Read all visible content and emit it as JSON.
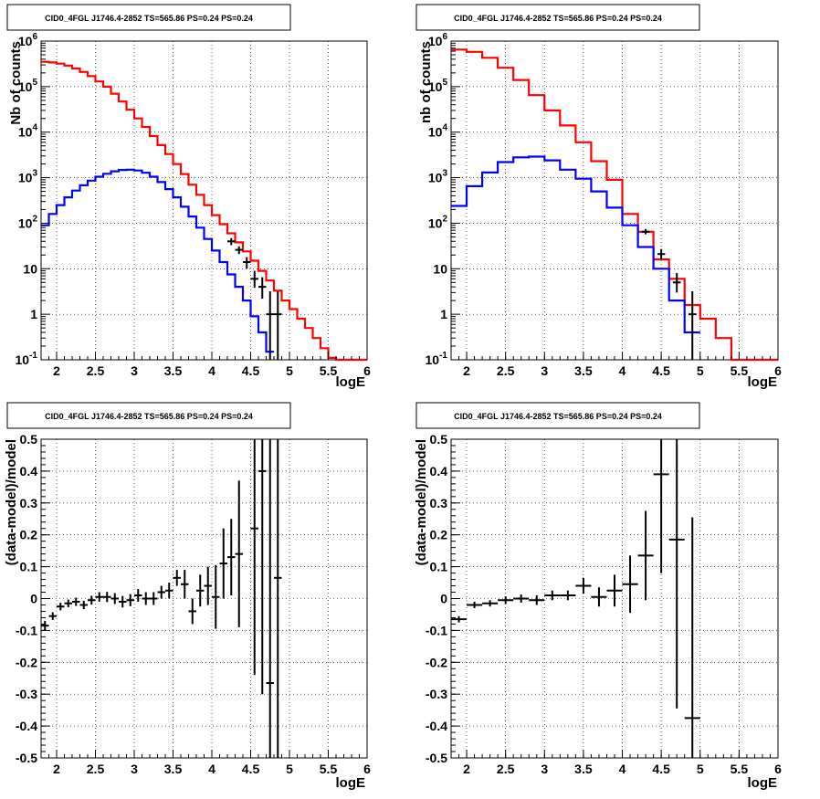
{
  "figure_title": "CID0_4FGL J1746.4-2852 TS=565.86 PS=0.24 PS=0.24",
  "colors": {
    "model_total": "#ff0000",
    "model_component": "#0000ff",
    "data": "#000000",
    "grid": "#000000",
    "background": "#ffffff"
  },
  "chart_data": [
    {
      "type": "line",
      "title": "CID0_4FGL J1746.4-2852 TS=565.86 PS=0.24 PS=0.24",
      "xlabel": "logE",
      "ylabel": "Nb of counts",
      "x_ticks": [
        "2",
        "2.5",
        "3",
        "3.5",
        "4",
        "4.5",
        "5",
        "5.5",
        "6"
      ],
      "y_ticks": [
        "10^-1",
        "1",
        "10",
        "10^2",
        "10^3",
        "10^4",
        "10^5",
        "10^6"
      ],
      "xlim": [
        1.8,
        6.0
      ],
      "ylim": [
        0.1,
        1000000
      ],
      "yscale": "log",
      "grid": true,
      "series": [
        {
          "kind": "step",
          "color": "red",
          "bin_edges": [
            1.8,
            1.9,
            2.0,
            2.1,
            2.2,
            2.3,
            2.4,
            2.5,
            2.6,
            2.7,
            2.8,
            2.9,
            3.0,
            3.1,
            3.2,
            3.3,
            3.4,
            3.5,
            3.6,
            3.7,
            3.8,
            3.9,
            4.0,
            4.1,
            4.2,
            4.3,
            4.4,
            4.5,
            4.6,
            4.7,
            4.8,
            4.9,
            5.0,
            5.1,
            5.2,
            5.3,
            5.4,
            5.5,
            5.6,
            5.7,
            5.8,
            5.9,
            6.0
          ],
          "values": [
            350000,
            340000,
            320000,
            290000,
            250000,
            210000,
            170000,
            130000,
            100000,
            70000,
            47000,
            31000,
            20000,
            13000,
            8200,
            5200,
            3300,
            2000,
            1200,
            700,
            420,
            250,
            150,
            95,
            60,
            38,
            24,
            15,
            9,
            5.5,
            3.3,
            2.0,
            1.3,
            0.8,
            0.5,
            0.3,
            0.18,
            0.11,
            0.1,
            0.1,
            0.1,
            0.1
          ]
        },
        {
          "kind": "step",
          "color": "blue",
          "bin_edges": [
            1.8,
            1.9,
            2.0,
            2.1,
            2.2,
            2.3,
            2.4,
            2.5,
            2.6,
            2.7,
            2.8,
            2.9,
            3.0,
            3.1,
            3.2,
            3.3,
            3.4,
            3.5,
            3.6,
            3.7,
            3.8,
            3.9,
            4.0,
            4.1,
            4.2,
            4.3,
            4.4,
            4.5,
            4.6,
            4.7,
            4.8
          ],
          "values": [
            90,
            160,
            250,
            370,
            520,
            680,
            860,
            1050,
            1220,
            1380,
            1480,
            1500,
            1440,
            1280,
            1050,
            800,
            560,
            370,
            230,
            140,
            80,
            45,
            25,
            14,
            7.5,
            4,
            2,
            0.9,
            0.4,
            0.15
          ]
        },
        {
          "kind": "errorbars",
          "color": "black",
          "points": [
            {
              "x": 4.25,
              "y": 40,
              "lo": 33,
              "hi": 47
            },
            {
              "x": 4.35,
              "y": 26,
              "lo": 21,
              "hi": 31
            },
            {
              "x": 4.45,
              "y": 14,
              "lo": 10,
              "hi": 18
            },
            {
              "x": 4.55,
              "y": 6,
              "lo": 3.8,
              "hi": 9
            },
            {
              "x": 4.65,
              "y": 4,
              "lo": 2.2,
              "hi": 6.5
            },
            {
              "x": 4.75,
              "y": 1,
              "lo": 0.1,
              "hi": 3.2
            },
            {
              "x": 4.85,
              "y": 1,
              "lo": 0.1,
              "hi": 3.2
            }
          ]
        }
      ]
    },
    {
      "type": "line",
      "title": "CID0_4FGL J1746.4-2852 TS=565.86 PS=0.24 PS=0.24",
      "xlabel": "logE",
      "ylabel": "nb of counts",
      "x_ticks": [
        "2",
        "2.5",
        "3",
        "3.5",
        "4",
        "4.5",
        "5",
        "5.5",
        "6"
      ],
      "y_ticks": [
        "10^-1",
        "1",
        "10",
        "10^2",
        "10^3",
        "10^4",
        "10^5",
        "10^6"
      ],
      "xlim": [
        1.8,
        6.0
      ],
      "ylim": [
        0.1,
        1000000
      ],
      "yscale": "log",
      "grid": true,
      "series": [
        {
          "kind": "step",
          "color": "red",
          "bin_edges": [
            1.8,
            2.0,
            2.2,
            2.4,
            2.6,
            2.8,
            3.0,
            3.2,
            3.4,
            3.6,
            3.8,
            4.0,
            4.2,
            4.4,
            4.6,
            4.8,
            5.0,
            5.2,
            5.4,
            5.6,
            5.8,
            6.0
          ],
          "values": [
            650000,
            580000,
            430000,
            260000,
            140000,
            65000,
            30000,
            14000,
            6000,
            2300,
            900,
            160,
            65,
            16,
            6,
            1.6,
            0.8,
            0.3,
            0.1,
            0.1,
            0.1
          ]
        },
        {
          "kind": "step",
          "color": "blue",
          "bin_edges": [
            1.8,
            2.0,
            2.2,
            2.4,
            2.6,
            2.8,
            3.0,
            3.2,
            3.4,
            3.6,
            3.8,
            4.0,
            4.2,
            4.4,
            4.6,
            4.8,
            5.0
          ],
          "values": [
            240,
            650,
            1300,
            2200,
            2800,
            2900,
            2400,
            1500,
            950,
            500,
            220,
            90,
            30,
            10,
            2,
            0.4
          ]
        },
        {
          "kind": "errorbars",
          "color": "black",
          "points": [
            {
              "x": 4.3,
              "y": 65,
              "lo": 57,
              "hi": 74
            },
            {
              "x": 4.5,
              "y": 21,
              "lo": 16,
              "hi": 27
            },
            {
              "x": 4.7,
              "y": 5,
              "lo": 3,
              "hi": 8
            },
            {
              "x": 4.9,
              "y": 1,
              "lo": 0.1,
              "hi": 3.2
            }
          ]
        }
      ]
    },
    {
      "type": "scatter",
      "title": "CID0_4FGL J1746.4-2852 TS=565.86 PS=0.24 PS=0.24",
      "xlabel": "logE",
      "ylabel": "(data-model)/model",
      "x_ticks": [
        "2",
        "2.5",
        "3",
        "3.5",
        "4",
        "4.5",
        "5",
        "5.5",
        "6"
      ],
      "y_ticks": [
        "-0.5",
        "-0.4",
        "-0.3",
        "-0.2",
        "-0.1",
        "0",
        "0.1",
        "0.2",
        "0.3",
        "0.4",
        "0.5"
      ],
      "xlim": [
        1.8,
        6.0
      ],
      "ylim": [
        -0.5,
        0.5
      ],
      "grid": true,
      "series": [
        {
          "kind": "errorbars",
          "color": "black",
          "xerr": 0.05,
          "points": [
            {
              "x": 1.85,
              "y": -0.085,
              "err": 0.015
            },
            {
              "x": 1.95,
              "y": -0.055,
              "err": 0.012
            },
            {
              "x": 2.05,
              "y": -0.025,
              "err": 0.012
            },
            {
              "x": 2.15,
              "y": -0.015,
              "err": 0.012
            },
            {
              "x": 2.25,
              "y": -0.01,
              "err": 0.013
            },
            {
              "x": 2.35,
              "y": -0.02,
              "err": 0.013
            },
            {
              "x": 2.45,
              "y": -0.005,
              "err": 0.014
            },
            {
              "x": 2.55,
              "y": 0.005,
              "err": 0.015
            },
            {
              "x": 2.65,
              "y": 0.005,
              "err": 0.016
            },
            {
              "x": 2.75,
              "y": 0.0,
              "err": 0.017
            },
            {
              "x": 2.85,
              "y": -0.01,
              "err": 0.018
            },
            {
              "x": 2.95,
              "y": -0.005,
              "err": 0.019
            },
            {
              "x": 3.05,
              "y": 0.01,
              "err": 0.02
            },
            {
              "x": 3.15,
              "y": 0.0,
              "err": 0.02
            },
            {
              "x": 3.25,
              "y": 0.0,
              "err": 0.02
            },
            {
              "x": 3.35,
              "y": 0.02,
              "err": 0.02
            },
            {
              "x": 3.45,
              "y": 0.025,
              "err": 0.025
            },
            {
              "x": 3.55,
              "y": 0.065,
              "err": 0.025
            },
            {
              "x": 3.65,
              "y": 0.045,
              "err": 0.045
            },
            {
              "x": 3.75,
              "y": -0.04,
              "err": 0.04
            },
            {
              "x": 3.85,
              "y": 0.025,
              "err": 0.05
            },
            {
              "x": 3.95,
              "y": 0.04,
              "err": 0.06
            },
            {
              "x": 4.05,
              "y": 0.005,
              "err": 0.1
            },
            {
              "x": 4.15,
              "y": 0.11,
              "err": 0.11
            },
            {
              "x": 4.25,
              "y": 0.13,
              "err": 0.12
            },
            {
              "x": 4.35,
              "y": 0.14,
              "err": 0.23
            },
            {
              "x": 4.55,
              "y": 0.22,
              "err": 0.46
            },
            {
              "x": 4.65,
              "y": 0.4,
              "err": 0.7
            },
            {
              "x": 4.75,
              "y": -0.265,
              "err": 0.8
            },
            {
              "x": 4.85,
              "y": 0.065,
              "err": 0.9
            }
          ]
        }
      ]
    },
    {
      "type": "scatter",
      "title": "CID0_4FGL J1746.4-2852 TS=565.86 PS=0.24 PS=0.24",
      "xlabel": "logE",
      "ylabel": "(data-model)/model",
      "x_ticks": [
        "2",
        "2.5",
        "3",
        "3.5",
        "4",
        "4.5",
        "5",
        "5.5",
        "6"
      ],
      "y_ticks": [
        "-0.5",
        "-0.4",
        "-0.3",
        "-0.2",
        "-0.1",
        "0",
        "0.1",
        "0.2",
        "0.3",
        "0.4",
        "0.5"
      ],
      "xlim": [
        1.8,
        6.0
      ],
      "ylim": [
        -0.5,
        0.5
      ],
      "grid": true,
      "series": [
        {
          "kind": "errorbars",
          "color": "black",
          "xerr": 0.1,
          "points": [
            {
              "x": 1.9,
              "y": -0.065,
              "err": 0.01
            },
            {
              "x": 2.1,
              "y": -0.02,
              "err": 0.01
            },
            {
              "x": 2.3,
              "y": -0.015,
              "err": 0.01
            },
            {
              "x": 2.5,
              "y": -0.005,
              "err": 0.012
            },
            {
              "x": 2.7,
              "y": 0.0,
              "err": 0.013
            },
            {
              "x": 2.9,
              "y": -0.005,
              "err": 0.015
            },
            {
              "x": 3.1,
              "y": 0.01,
              "err": 0.015
            },
            {
              "x": 3.3,
              "y": 0.01,
              "err": 0.015
            },
            {
              "x": 3.5,
              "y": 0.04,
              "err": 0.025
            },
            {
              "x": 3.7,
              "y": 0.005,
              "err": 0.03
            },
            {
              "x": 3.9,
              "y": 0.025,
              "err": 0.05
            },
            {
              "x": 4.1,
              "y": 0.045,
              "err": 0.09
            },
            {
              "x": 4.3,
              "y": 0.135,
              "err": 0.14
            },
            {
              "x": 4.5,
              "y": 0.39,
              "err": 0.31
            },
            {
              "x": 4.7,
              "y": 0.185,
              "err": 0.53
            },
            {
              "x": 4.9,
              "y": -0.375,
              "err": 0.63
            }
          ]
        }
      ]
    }
  ]
}
